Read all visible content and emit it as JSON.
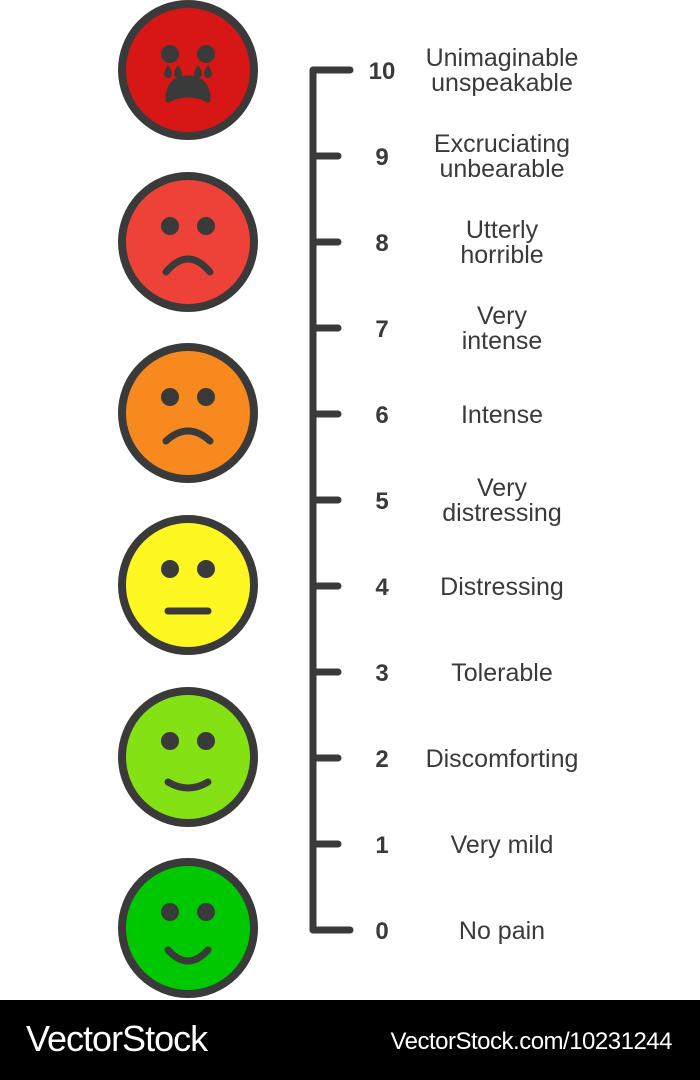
{
  "scale": {
    "levels": [
      {
        "value": "0",
        "label": [
          "No pain"
        ]
      },
      {
        "value": "1",
        "label": [
          "Very mild"
        ]
      },
      {
        "value": "2",
        "label": [
          "Discomforting"
        ]
      },
      {
        "value": "3",
        "label": [
          "Tolerable"
        ]
      },
      {
        "value": "4",
        "label": [
          "Distressing"
        ]
      },
      {
        "value": "5",
        "label": [
          "Very",
          "distressing"
        ]
      },
      {
        "value": "6",
        "label": [
          "Intense"
        ]
      },
      {
        "value": "7",
        "label": [
          "Very",
          "intense"
        ]
      },
      {
        "value": "8",
        "label": [
          "Utterly",
          "horrible"
        ]
      },
      {
        "value": "9",
        "label": [
          "Excruciating",
          "unbearable"
        ]
      },
      {
        "value": "10",
        "label": [
          "Unimaginable",
          "unspeakable"
        ]
      }
    ]
  },
  "faces": [
    {
      "expression": "crying",
      "color": "#d71616"
    },
    {
      "expression": "sad",
      "color": "#ee4138"
    },
    {
      "expression": "frown",
      "color": "#f7891f"
    },
    {
      "expression": "neutral",
      "color": "#fff722"
    },
    {
      "expression": "slight-smile",
      "color": "#84e214"
    },
    {
      "expression": "smile",
      "color": "#00c800"
    }
  ],
  "outline_color": "#3a3a3a",
  "footer": {
    "brand": "VectorStock",
    "url": "VectorStock.com/10231244"
  }
}
